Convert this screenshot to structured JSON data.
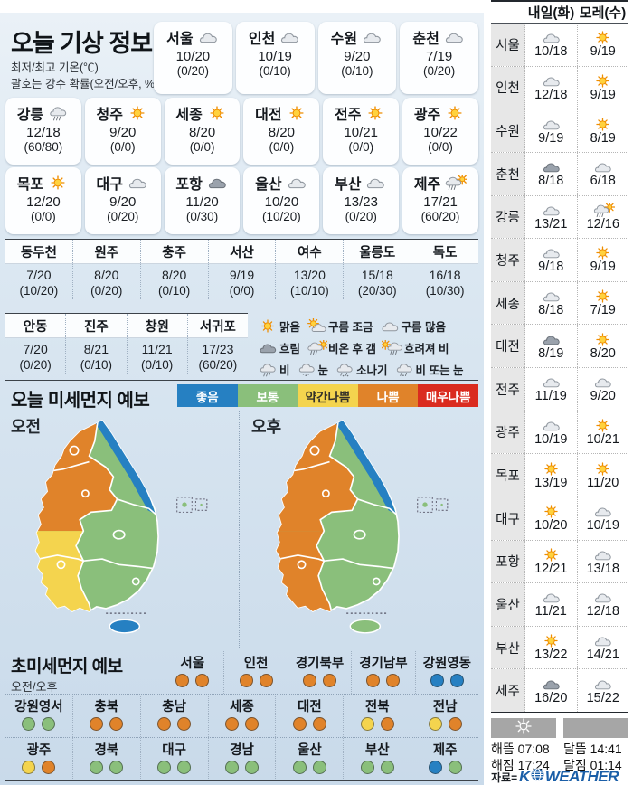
{
  "colors": {
    "good": "#2680c2",
    "normal": "#8abf7b",
    "slightly_bad": "#f4d44e",
    "bad": "#e0832a",
    "very_bad": "#da2b1f"
  },
  "today": {
    "title": "오늘 기상 정보",
    "subtitle1": "최저/최고 기온(℃)",
    "subtitle2": "괄호는 강수 확률(오전/오후, %)",
    "cards_row1": [
      {
        "city": "서울",
        "icon": "cloud",
        "temp": "10/20",
        "prob": "(0/20)"
      },
      {
        "city": "인천",
        "icon": "cloud",
        "temp": "10/19",
        "prob": "(0/10)"
      },
      {
        "city": "수원",
        "icon": "cloud",
        "temp": "9/20",
        "prob": "(0/10)"
      },
      {
        "city": "춘천",
        "icon": "cloud",
        "temp": "7/19",
        "prob": "(0/20)"
      }
    ],
    "cards_row2": [
      {
        "city": "강릉",
        "icon": "rain",
        "temp": "12/18",
        "prob": "(60/80)"
      },
      {
        "city": "청주",
        "icon": "sun",
        "temp": "9/20",
        "prob": "(0/0)"
      },
      {
        "city": "세종",
        "icon": "sun",
        "temp": "8/20",
        "prob": "(0/0)"
      },
      {
        "city": "대전",
        "icon": "sun",
        "temp": "8/20",
        "prob": "(0/0)"
      },
      {
        "city": "전주",
        "icon": "sun",
        "temp": "10/21",
        "prob": "(0/0)"
      },
      {
        "city": "광주",
        "icon": "sun",
        "temp": "10/22",
        "prob": "(0/0)"
      }
    ],
    "cards_row3": [
      {
        "city": "목포",
        "icon": "sun",
        "temp": "12/20",
        "prob": "(0/0)"
      },
      {
        "city": "대구",
        "icon": "cloud",
        "temp": "9/20",
        "prob": "(0/20)"
      },
      {
        "city": "포항",
        "icon": "cloud-dark",
        "temp": "11/20",
        "prob": "(0/30)"
      },
      {
        "city": "울산",
        "icon": "cloud",
        "temp": "10/20",
        "prob": "(10/20)"
      },
      {
        "city": "부산",
        "icon": "cloud",
        "temp": "13/23",
        "prob": "(0/20)"
      },
      {
        "city": "제주",
        "icon": "rain-sun",
        "temp": "17/21",
        "prob": "(60/20)"
      }
    ],
    "tableA": [
      {
        "name": "동두천",
        "temp": "7/20",
        "prob": "(10/20)"
      },
      {
        "name": "원주",
        "temp": "8/20",
        "prob": "(0/20)"
      },
      {
        "name": "충주",
        "temp": "8/20",
        "prob": "(0/10)"
      },
      {
        "name": "서산",
        "temp": "9/19",
        "prob": "(0/0)"
      },
      {
        "name": "여수",
        "temp": "13/20",
        "prob": "(10/10)"
      },
      {
        "name": "울릉도",
        "temp": "15/18",
        "prob": "(20/30)"
      },
      {
        "name": "독도",
        "temp": "16/18",
        "prob": "(10/30)"
      }
    ],
    "tableB": [
      {
        "name": "안동",
        "temp": "7/20",
        "prob": "(0/20)"
      },
      {
        "name": "진주",
        "temp": "8/21",
        "prob": "(0/10)"
      },
      {
        "name": "창원",
        "temp": "11/21",
        "prob": "(0/10)"
      },
      {
        "name": "서귀포",
        "temp": "17/23",
        "prob": "(60/20)"
      }
    ],
    "legend_rows": [
      [
        {
          "icon": "sun",
          "label": "맑음"
        },
        {
          "icon": "partly",
          "label": "구름 조금"
        },
        {
          "icon": "cloud",
          "label": "구름 많음"
        }
      ],
      [
        {
          "icon": "cloud-dark",
          "label": "흐림"
        },
        {
          "icon": "rain-sun",
          "label": "비온 후 갬"
        },
        {
          "icon": "sun-rain",
          "label": "흐려져 비"
        }
      ],
      [
        {
          "icon": "rain",
          "label": "비"
        },
        {
          "icon": "snow",
          "label": "눈"
        },
        {
          "icon": "shower",
          "label": "소나기"
        },
        {
          "icon": "rain-snow",
          "label": "비 또는 눈"
        }
      ]
    ]
  },
  "dust": {
    "title": "오늘 미세먼지 예보",
    "levels": [
      {
        "label": "좋음",
        "key": "good",
        "text": "#ffffff"
      },
      {
        "label": "보통",
        "key": "normal",
        "text": "#ffffff"
      },
      {
        "label": "약간나쁨",
        "key": "slightly_bad",
        "text": "#33302a"
      },
      {
        "label": "나쁨",
        "key": "bad",
        "text": "#ffffff"
      },
      {
        "label": "매우나쁨",
        "key": "very_bad",
        "text": "#ffffff"
      }
    ],
    "maps": [
      {
        "label": "오전",
        "west": "bad",
        "southwest": "slightly_bad",
        "east": "normal",
        "coast": "good",
        "jeju": "good"
      },
      {
        "label": "오후",
        "west": "bad",
        "southwest": "bad",
        "east": "normal",
        "coast": "good",
        "jeju": "normal"
      }
    ]
  },
  "ultrafine": {
    "title": "초미세먼지 예보",
    "subtitle": "오전/오후",
    "row1": [
      {
        "name": "서울",
        "am": "bad",
        "pm": "bad"
      },
      {
        "name": "인천",
        "am": "bad",
        "pm": "bad"
      },
      {
        "name": "경기북부",
        "am": "bad",
        "pm": "bad"
      },
      {
        "name": "경기남부",
        "am": "bad",
        "pm": "bad"
      },
      {
        "name": "강원영동",
        "am": "good",
        "pm": "good"
      }
    ],
    "row2": [
      {
        "name": "강원영서",
        "am": "normal",
        "pm": "normal"
      },
      {
        "name": "충북",
        "am": "bad",
        "pm": "bad"
      },
      {
        "name": "충남",
        "am": "bad",
        "pm": "bad"
      },
      {
        "name": "세종",
        "am": "bad",
        "pm": "bad"
      },
      {
        "name": "대전",
        "am": "bad",
        "pm": "bad"
      },
      {
        "name": "전북",
        "am": "slightly_bad",
        "pm": "bad"
      },
      {
        "name": "전남",
        "am": "slightly_bad",
        "pm": "bad"
      }
    ],
    "row3": [
      {
        "name": "광주",
        "am": "slightly_bad",
        "pm": "bad"
      },
      {
        "name": "경북",
        "am": "normal",
        "pm": "normal"
      },
      {
        "name": "대구",
        "am": "normal",
        "pm": "normal"
      },
      {
        "name": "경남",
        "am": "normal",
        "pm": "normal"
      },
      {
        "name": "울산",
        "am": "normal",
        "pm": "normal"
      },
      {
        "name": "부산",
        "am": "normal",
        "pm": "normal"
      },
      {
        "name": "제주",
        "am": "good",
        "pm": "normal"
      }
    ]
  },
  "tomorrow": {
    "headers": [
      "내일(화)",
      "모레(수)"
    ],
    "rows": [
      {
        "city": "서울",
        "d1": {
          "icon": "cloud",
          "temp": "10/18"
        },
        "d2": {
          "icon": "sun",
          "temp": "9/19"
        }
      },
      {
        "city": "인천",
        "d1": {
          "icon": "cloud",
          "temp": "12/18"
        },
        "d2": {
          "icon": "sun",
          "temp": "9/19"
        }
      },
      {
        "city": "수원",
        "d1": {
          "icon": "cloud",
          "temp": "9/19"
        },
        "d2": {
          "icon": "sun",
          "temp": "8/19"
        }
      },
      {
        "city": "춘천",
        "d1": {
          "icon": "cloud-dark",
          "temp": "8/18"
        },
        "d2": {
          "icon": "cloud",
          "temp": "6/18"
        }
      },
      {
        "city": "강릉",
        "d1": {
          "icon": "cloud",
          "temp": "13/21"
        },
        "d2": {
          "icon": "rain-sun",
          "temp": "12/16"
        }
      },
      {
        "city": "청주",
        "d1": {
          "icon": "cloud",
          "temp": "9/18"
        },
        "d2": {
          "icon": "sun",
          "temp": "9/19"
        }
      },
      {
        "city": "세종",
        "d1": {
          "icon": "cloud",
          "temp": "8/18"
        },
        "d2": {
          "icon": "sun",
          "temp": "7/19"
        }
      },
      {
        "city": "대전",
        "d1": {
          "icon": "cloud-dark",
          "temp": "8/19"
        },
        "d2": {
          "icon": "sun",
          "temp": "8/20"
        }
      },
      {
        "city": "전주",
        "d1": {
          "icon": "cloud",
          "temp": "11/19"
        },
        "d2": {
          "icon": "cloud",
          "temp": "9/20"
        }
      },
      {
        "city": "광주",
        "d1": {
          "icon": "cloud",
          "temp": "10/19"
        },
        "d2": {
          "icon": "sun",
          "temp": "10/21"
        }
      },
      {
        "city": "목포",
        "d1": {
          "icon": "sun",
          "temp": "13/19"
        },
        "d2": {
          "icon": "sun",
          "temp": "11/20"
        }
      },
      {
        "city": "대구",
        "d1": {
          "icon": "sun",
          "temp": "10/20"
        },
        "d2": {
          "icon": "cloud",
          "temp": "10/19"
        }
      },
      {
        "city": "포항",
        "d1": {
          "icon": "sun",
          "temp": "12/21"
        },
        "d2": {
          "icon": "cloud",
          "temp": "13/18"
        }
      },
      {
        "city": "울산",
        "d1": {
          "icon": "cloud",
          "temp": "11/21"
        },
        "d2": {
          "icon": "cloud",
          "temp": "12/18"
        }
      },
      {
        "city": "부산",
        "d1": {
          "icon": "sun",
          "temp": "13/22"
        },
        "d2": {
          "icon": "cloud",
          "temp": "14/21"
        }
      },
      {
        "city": "제주",
        "d1": {
          "icon": "cloud-dark",
          "temp": "16/20"
        },
        "d2": {
          "icon": "cloud",
          "temp": "15/22"
        }
      }
    ]
  },
  "astro": {
    "sunrise_label": "해뜸",
    "sunrise_time": "07:08",
    "sunset_label": "해짐",
    "sunset_time": "17:24",
    "moonrise_label": "달뜸",
    "moonrise_time": "14:41",
    "moonset_label": "달짐",
    "moonset_time": "01:14"
  },
  "source": {
    "prefix": "자료=",
    "brand_k": "K",
    "brand_rest": "WEATHER"
  }
}
